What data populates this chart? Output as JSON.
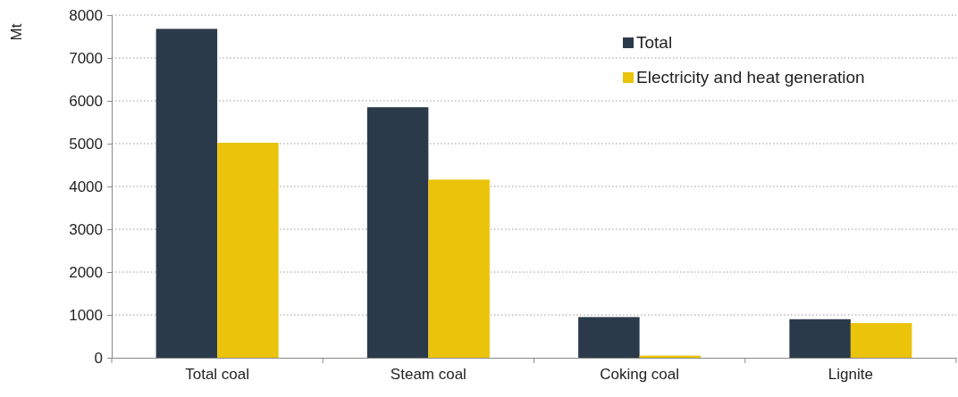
{
  "chart_data": {
    "type": "bar",
    "ylabel": "Mt",
    "categories": [
      "Total coal",
      "Steam coal",
      "Coking coal",
      "Lignite"
    ],
    "series": [
      {
        "name": "Total",
        "color": "#2b3a4a",
        "values": [
          7680,
          5850,
          950,
          900
        ]
      },
      {
        "name": "Electricity and heat generation",
        "color": "#eac30a",
        "values": [
          5020,
          4160,
          50,
          810
        ]
      }
    ],
    "ylim": [
      0,
      8000
    ],
    "yticks": [
      0,
      1000,
      2000,
      3000,
      4000,
      5000,
      6000,
      7000,
      8000
    ],
    "grid": "y",
    "legend": "top right"
  }
}
